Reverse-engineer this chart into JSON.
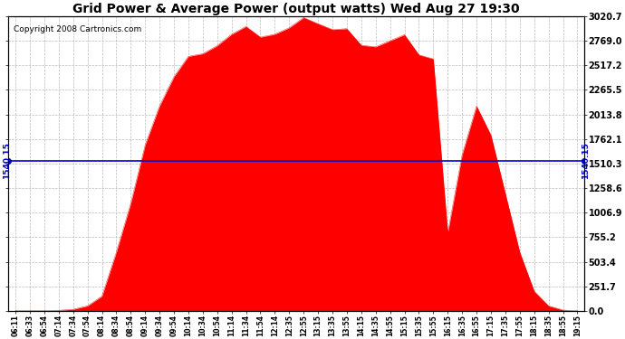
{
  "title": "Grid Power & Average Power (output watts) Wed Aug 27 19:30",
  "copyright": "Copyright 2008 Cartronics.com",
  "avg_line_value": 1540.15,
  "avg_line_label": "1540.15",
  "yticks_right": [
    0.0,
    251.7,
    503.4,
    755.2,
    1006.9,
    1258.6,
    1510.3,
    1762.1,
    2013.8,
    2265.5,
    2517.2,
    2769.0,
    3020.7
  ],
  "ymax": 3020.7,
  "ymin": 0.0,
  "fill_color": "#ff0000",
  "line_color": "#0000cc",
  "background_color": "#ffffff",
  "grid_color": "#bbbbbb",
  "title_fontsize": 10,
  "copyright_fontsize": 6.5,
  "x_labels": [
    "06:11",
    "06:33",
    "06:54",
    "07:14",
    "07:34",
    "07:54",
    "08:14",
    "08:34",
    "08:54",
    "09:14",
    "09:34",
    "09:54",
    "10:14",
    "10:34",
    "10:54",
    "11:14",
    "11:34",
    "11:54",
    "12:14",
    "12:35",
    "12:55",
    "13:15",
    "13:35",
    "13:55",
    "14:15",
    "14:35",
    "14:55",
    "15:15",
    "15:35",
    "15:55",
    "16:15",
    "16:35",
    "16:55",
    "17:15",
    "17:35",
    "17:55",
    "18:15",
    "18:35",
    "18:55",
    "19:15"
  ],
  "y_values": [
    0,
    0,
    2,
    5,
    15,
    50,
    150,
    600,
    1100,
    1700,
    2100,
    2400,
    2600,
    2750,
    2850,
    2870,
    2900,
    2920,
    2950,
    2980,
    3010,
    2990,
    2970,
    2940,
    2910,
    2880,
    2850,
    2810,
    2770,
    2730,
    800,
    1600,
    2100,
    1800,
    1200,
    600,
    200,
    50,
    8,
    0
  ]
}
